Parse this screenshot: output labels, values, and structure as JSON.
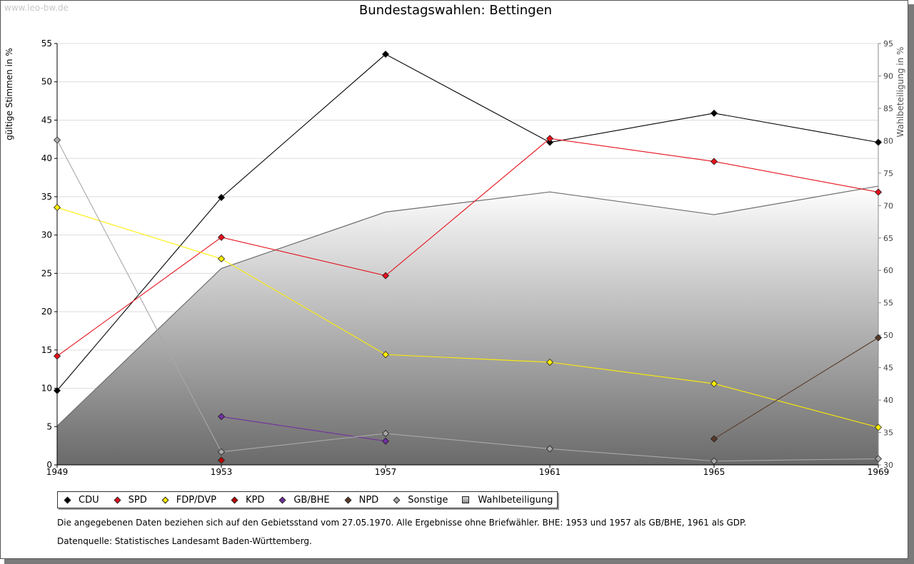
{
  "watermark": "www.leo-bw.de",
  "chart_data": {
    "type": "line",
    "title": "Bundestagswahlen: Bettingen",
    "ylabel": "gültige Stimmen in %",
    "y2label": "Wahlbeteiligung in %",
    "categories": [
      "1949",
      "1953",
      "1957",
      "1961",
      "1965",
      "1969"
    ],
    "ylim": [
      0,
      55
    ],
    "y2lim": [
      30,
      95
    ],
    "yticks": [
      "0",
      "5",
      "10",
      "15",
      "20",
      "25",
      "30",
      "35",
      "40",
      "45",
      "50",
      "55"
    ],
    "y2ticks": [
      "30",
      "35",
      "40",
      "45",
      "50",
      "55",
      "60",
      "65",
      "70",
      "75",
      "80",
      "85",
      "90",
      "95"
    ],
    "grid": true,
    "series": [
      {
        "name": "CDU",
        "color": "#000000",
        "values": [
          9.7,
          34.9,
          53.6,
          42.1,
          45.9,
          42.1
        ]
      },
      {
        "name": "SPD",
        "color": "#e4111b",
        "values": [
          14.2,
          29.7,
          24.7,
          42.6,
          39.6,
          35.6
        ]
      },
      {
        "name": "FDP/DVP",
        "color": "#ffed00",
        "values": [
          33.6,
          26.9,
          14.4,
          13.4,
          10.6,
          4.9
        ]
      },
      {
        "name": "KPD",
        "color": "#c00000",
        "values": [
          null,
          0.6,
          null,
          null,
          null,
          null
        ]
      },
      {
        "name": "GB/BHE",
        "color": "#7030a0",
        "values": [
          null,
          6.3,
          3.1,
          null,
          null,
          null
        ]
      },
      {
        "name": "NPD",
        "color": "#5a3a29",
        "values": [
          null,
          null,
          null,
          null,
          3.4,
          16.6
        ]
      },
      {
        "name": "Sonstige",
        "color": "#a8a8a8",
        "values": [
          42.4,
          1.7,
          4.1,
          2.1,
          0.5,
          0.8
        ]
      }
    ],
    "area": {
      "name": "Wahlbeteiligung",
      "axis": "right",
      "values": [
        36.0,
        60.3,
        69.0,
        72.1,
        68.6,
        73.0
      ]
    }
  },
  "notes": {
    "line1": "Die angegebenen Daten beziehen sich auf den Gebietsstand vom 27.05.1970. Alle Ergebnisse ohne Briefwähler. BHE: 1953 und 1957 als GB/BHE, 1961 als GDP.",
    "line2": "Datenquelle: Statistisches Landesamt Baden-Württemberg."
  }
}
